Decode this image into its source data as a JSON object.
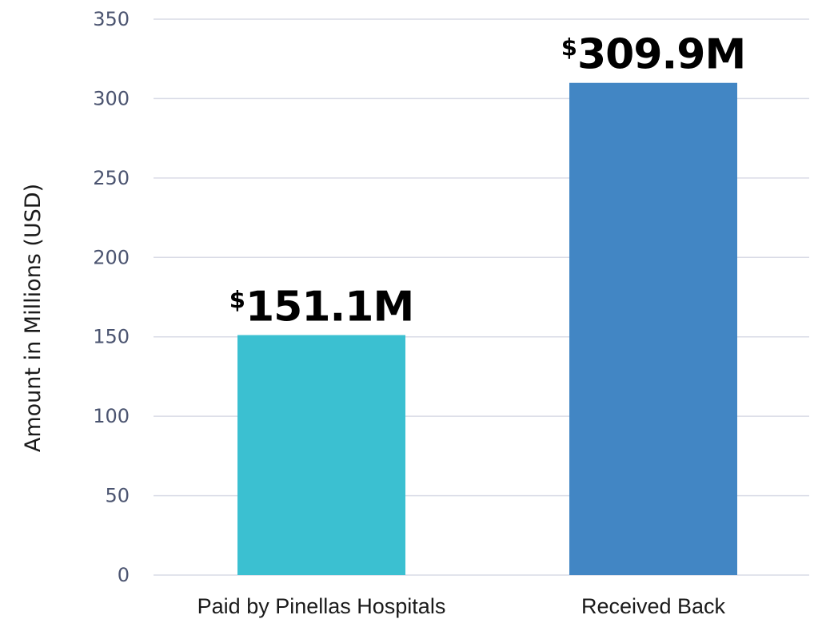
{
  "chart_data": {
    "type": "bar",
    "title": "",
    "xlabel": "",
    "ylabel": "Amount in Millions (USD)",
    "ylim": [
      0,
      350
    ],
    "yticks": [
      0,
      50,
      100,
      150,
      200,
      250,
      300,
      350
    ],
    "grid": true,
    "legend": "none",
    "categories": [
      "Paid by Pinellas Hospitals",
      "Received Back"
    ],
    "values": [
      151.1,
      309.9
    ],
    "data_labels": [
      {
        "currency": "$",
        "text": "151.1M"
      },
      {
        "currency": "$",
        "text": "309.9M"
      }
    ],
    "colors": [
      "#3bc0d1",
      "#4286c4"
    ],
    "grid_color": "#d9dbe6",
    "tick_color": "#4b5470"
  }
}
